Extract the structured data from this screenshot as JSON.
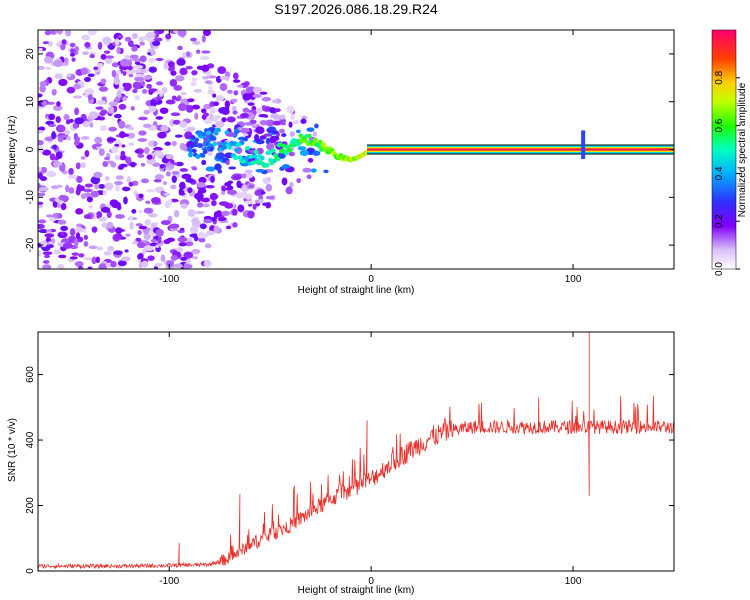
{
  "title": "S197.2026.086.18.29.R24",
  "chart_data": [
    {
      "type": "heatmap",
      "name": "spectrogram",
      "xlabel": "Height of straight line (km)",
      "ylabel": "Frequency (Hz)",
      "xlim": [
        -165,
        150
      ],
      "ylim": [
        -25,
        25
      ],
      "xticks": [
        -100,
        0,
        100
      ],
      "yticks": [
        -20,
        -10,
        0,
        10,
        20
      ],
      "colorbar": {
        "label": "Normalized spectral amplitude",
        "range": [
          0,
          1
        ],
        "ticks": [
          0.0,
          0.2,
          0.4,
          0.6,
          0.8
        ],
        "colors": [
          "#ffffff",
          "#c8a8f0",
          "#8000ff",
          "#4040ff",
          "#00c8ff",
          "#00ff80",
          "#80ff00",
          "#ffff00",
          "#ff8000",
          "#ff0040",
          "#ff0080"
        ]
      },
      "ridge": {
        "frequency_hz": 0,
        "strong_from_km": 0,
        "strong_to_km": 150,
        "amplitude": 0.95
      }
    },
    {
      "type": "line",
      "name": "snr",
      "xlabel": "Height of straight line (km)",
      "ylabel": "SNR (10 * v/v)",
      "xlim": [
        -165,
        150
      ],
      "ylim": [
        0,
        730
      ],
      "xticks": [
        -100,
        0,
        100
      ],
      "yticks": [
        0,
        200,
        400,
        600
      ],
      "color": "#e8302a",
      "trend": {
        "x": [
          -165,
          -120,
          -90,
          -80,
          -70,
          -60,
          -50,
          -40,
          -30,
          -20,
          -10,
          0,
          10,
          20,
          30,
          40,
          50,
          60,
          80,
          100,
          120,
          150
        ],
        "y": [
          15,
          15,
          18,
          20,
          40,
          80,
          110,
          140,
          180,
          220,
          250,
          280,
          330,
          370,
          410,
          430,
          440,
          440,
          440,
          440,
          440,
          440
        ]
      },
      "spikes": [
        {
          "x": 108,
          "y": 730
        },
        {
          "x": 108,
          "y": 230
        },
        {
          "x": 83,
          "y": 530
        },
        {
          "x": -65,
          "y": 235
        },
        {
          "x": -38,
          "y": 260
        },
        {
          "x": -2,
          "y": 460
        },
        {
          "x": -95,
          "y": 85
        }
      ]
    }
  ]
}
